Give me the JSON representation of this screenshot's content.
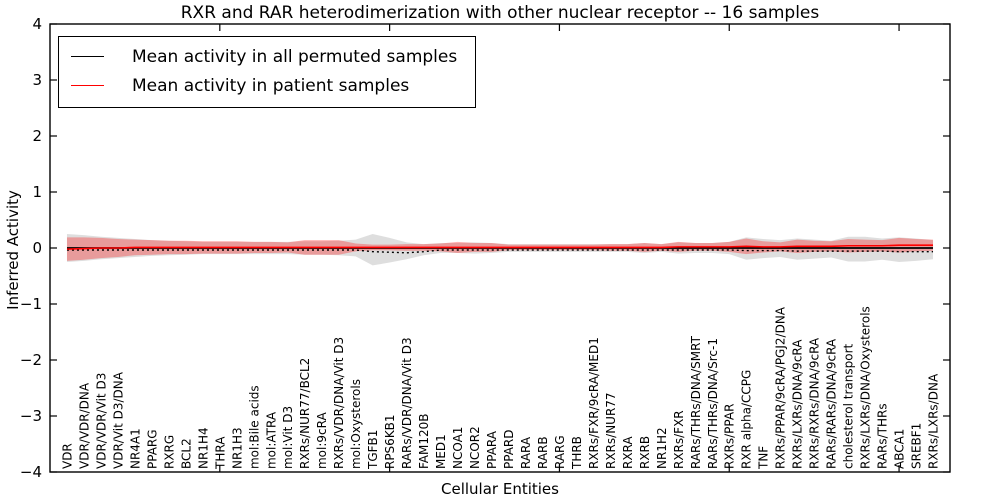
{
  "chart_data": {
    "type": "line",
    "title": "RXR and RAR heterodimerization with other nuclear receptor -- 16 samples",
    "xlabel": "Cellular Entities",
    "ylabel": "Inferred Activity",
    "ylim": [
      -4,
      4
    ],
    "yticks": [
      4,
      3,
      2,
      1,
      0,
      -1,
      -2,
      -3,
      -4
    ],
    "xlim": [
      0,
      53
    ],
    "xticks": [
      10,
      20,
      30,
      40,
      50
    ],
    "grid": false,
    "legend_position": "upper left",
    "baseline": 0,
    "entities": [
      "VDR",
      "VDR/VDR/DNA",
      "VDR/VDR/Vit D3",
      "VDR/Vit D3/DNA",
      "NR4A1",
      "PPARG",
      "RXRG",
      "BCL2",
      "NR1H4",
      "THRA",
      "NR1H3",
      "mol:Bile acids",
      "mol:ATRA",
      "mol:Vit D3",
      "RXRs/NUR77/BCL2",
      "mol:9cRA",
      "RXRs/VDR/DNA/Vit D3",
      "mol:Oxysterols",
      "TGFB1",
      "RPS6KB1",
      "RARs/VDR/DNA/Vit D3",
      "FAM120B",
      "MED1",
      "NCOA1",
      "NCOR2",
      "PPARA",
      "PPARD",
      "RARA",
      "RARB",
      "RARG",
      "THRB",
      "RXRs/FXR/9cRA/MED1",
      "RXRs/NUR77",
      "RXRA",
      "RXRB",
      "NR1H2",
      "RXRs/FXR",
      "RARs/THRs/DNA/SMRT",
      "RARs/THRs/DNA/Src-1",
      "RXRs/PPAR",
      "RXR alpha/CCPG",
      "TNF",
      "RXRs/PPAR/9cRA/PGJ2/DNA",
      "RXRs/LXRs/DNA/9cRA",
      "RXRs/RXRs/DNA/9cRA",
      "RARs/RARs/DNA/9cRA",
      "cholesterol transport",
      "RXRs/LXRs/DNA/Oxysterols",
      "RARs/THRs",
      "ABCA1",
      "SREBF1",
      "RXRs/LXRs/DNA"
    ],
    "series": [
      {
        "name": "Mean activity in all permuted samples",
        "color": "#000000",
        "band_opacity": 0.13,
        "mean": [
          0,
          0,
          0,
          0,
          0,
          0,
          0,
          0,
          0,
          0,
          0,
          0,
          0,
          0,
          0,
          0,
          0,
          0,
          -0.03,
          -0.04,
          -0.05,
          -0.03,
          0,
          0,
          0,
          0,
          0,
          0,
          0,
          0,
          0,
          0,
          0,
          0,
          0,
          0,
          0,
          0,
          0,
          0,
          -0.01,
          -0.01,
          -0.01,
          -0.02,
          -0.02,
          -0.02,
          -0.02,
          -0.02,
          -0.02,
          -0.03,
          -0.03,
          -0.03
        ],
        "std": [
          0.25,
          0.23,
          0.2,
          0.18,
          0.16,
          0.14,
          0.13,
          0.12,
          0.11,
          0.11,
          0.11,
          0.11,
          0.11,
          0.11,
          0.12,
          0.12,
          0.13,
          0.15,
          0.28,
          0.22,
          0.15,
          0.1,
          0.09,
          0.09,
          0.1,
          0.09,
          0.07,
          0.07,
          0.07,
          0.07,
          0.07,
          0.07,
          0.07,
          0.07,
          0.09,
          0.07,
          0.1,
          0.09,
          0.09,
          0.11,
          0.2,
          0.17,
          0.15,
          0.19,
          0.17,
          0.15,
          0.22,
          0.22,
          0.19,
          0.22,
          0.2,
          0.17
        ]
      },
      {
        "name": "Mean activity in patient samples",
        "color": "#ff0000",
        "band_opacity": 0.3,
        "mean": [
          -0.02,
          -0.01,
          0,
          0,
          0.01,
          0.01,
          0.01,
          0.01,
          0.01,
          0.01,
          0.01,
          0.01,
          0.01,
          0.01,
          0.01,
          0.01,
          0.01,
          0.01,
          0.01,
          0.01,
          0.01,
          0.01,
          0.01,
          0.01,
          0.01,
          0.01,
          0.01,
          0.01,
          0.01,
          0.01,
          0.01,
          0.01,
          0.01,
          0.01,
          0.01,
          0.01,
          0.02,
          0.02,
          0.02,
          0.02,
          0.03,
          0.02,
          0.02,
          0.03,
          0.03,
          0.03,
          0.04,
          0.04,
          0.04,
          0.05,
          0.05,
          0.05
        ],
        "std": [
          0.21,
          0.2,
          0.18,
          0.16,
          0.14,
          0.13,
          0.12,
          0.12,
          0.11,
          0.11,
          0.11,
          0.1,
          0.1,
          0.09,
          0.13,
          0.13,
          0.13,
          0.07,
          0.05,
          0.05,
          0.06,
          0.06,
          0.07,
          0.1,
          0.08,
          0.08,
          0.05,
          0.05,
          0.05,
          0.05,
          0.05,
          0.05,
          0.06,
          0.06,
          0.08,
          0.06,
          0.09,
          0.07,
          0.07,
          0.09,
          0.14,
          0.1,
          0.08,
          0.12,
          0.1,
          0.09,
          0.12,
          0.11,
          0.1,
          0.13,
          0.11,
          0.1
        ]
      }
    ]
  }
}
